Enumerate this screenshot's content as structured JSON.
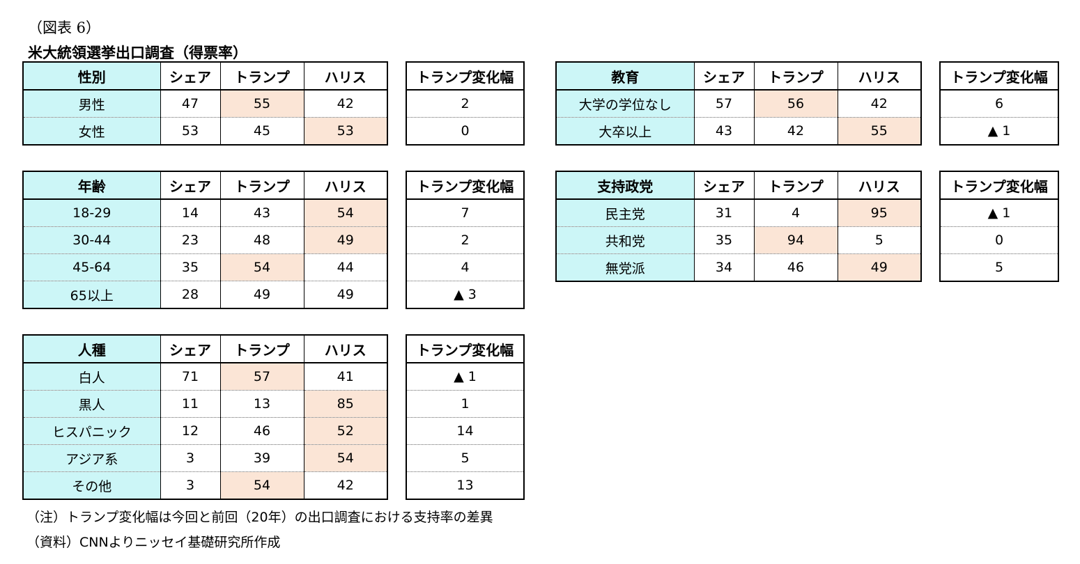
{
  "fig_label": "（図表 6）",
  "title": "米大統領選挙出口調査（得票率）",
  "columns": {
    "share": "シェア",
    "trump": "トランプ",
    "harris": "ハリス",
    "change": "トランプ変化幅"
  },
  "tables": [
    {
      "header": "性別",
      "rows": [
        {
          "label": "男性",
          "share": "47",
          "trump": "55",
          "harris": "42",
          "change": "2",
          "hl": "trump"
        },
        {
          "label": "女性",
          "share": "53",
          "trump": "45",
          "harris": "53",
          "change": "0",
          "hl": "harris"
        }
      ]
    },
    {
      "header": "年齢",
      "rows": [
        {
          "label": "18-29",
          "share": "14",
          "trump": "43",
          "harris": "54",
          "change": "7",
          "hl": "harris"
        },
        {
          "label": "30-44",
          "share": "23",
          "trump": "48",
          "harris": "49",
          "change": "2",
          "hl": "harris"
        },
        {
          "label": "45-64",
          "share": "35",
          "trump": "54",
          "harris": "44",
          "change": "4",
          "hl": "trump"
        },
        {
          "label": "65以上",
          "share": "28",
          "trump": "49",
          "harris": "49",
          "change": "▲ 3",
          "hl": ""
        }
      ]
    },
    {
      "header": "人種",
      "rows": [
        {
          "label": "白人",
          "share": "71",
          "trump": "57",
          "harris": "41",
          "change": "▲ 1",
          "hl": "trump"
        },
        {
          "label": "黒人",
          "share": "11",
          "trump": "13",
          "harris": "85",
          "change": "1",
          "hl": "harris"
        },
        {
          "label": "ヒスパニック",
          "share": "12",
          "trump": "46",
          "harris": "52",
          "change": "14",
          "hl": "harris"
        },
        {
          "label": "アジア系",
          "share": "3",
          "trump": "39",
          "harris": "54",
          "change": "5",
          "hl": "harris"
        },
        {
          "label": "その他",
          "share": "3",
          "trump": "54",
          "harris": "42",
          "change": "13",
          "hl": "trump"
        }
      ]
    },
    {
      "header": "教育",
      "rows": [
        {
          "label": "大学の学位なし",
          "share": "57",
          "trump": "56",
          "harris": "42",
          "change": "6",
          "hl": "trump"
        },
        {
          "label": "大卒以上",
          "share": "43",
          "trump": "42",
          "harris": "55",
          "change": "▲ 1",
          "hl": "harris"
        }
      ]
    },
    {
      "header": "支持政党",
      "rows": [
        {
          "label": "民主党",
          "share": "31",
          "trump": "4",
          "harris": "95",
          "change": "▲ 1",
          "hl": "harris"
        },
        {
          "label": "共和党",
          "share": "35",
          "trump": "94",
          "harris": "5",
          "change": "0",
          "hl": "trump"
        },
        {
          "label": "無党派",
          "share": "34",
          "trump": "46",
          "harris": "49",
          "change": "5",
          "hl": "harris"
        }
      ]
    }
  ],
  "note": "（注）トランプ変化幅は今回と前回（20年）の出口調査における支持率の差異",
  "source": "（資料）CNNよりニッセイ基礎研究所作成"
}
